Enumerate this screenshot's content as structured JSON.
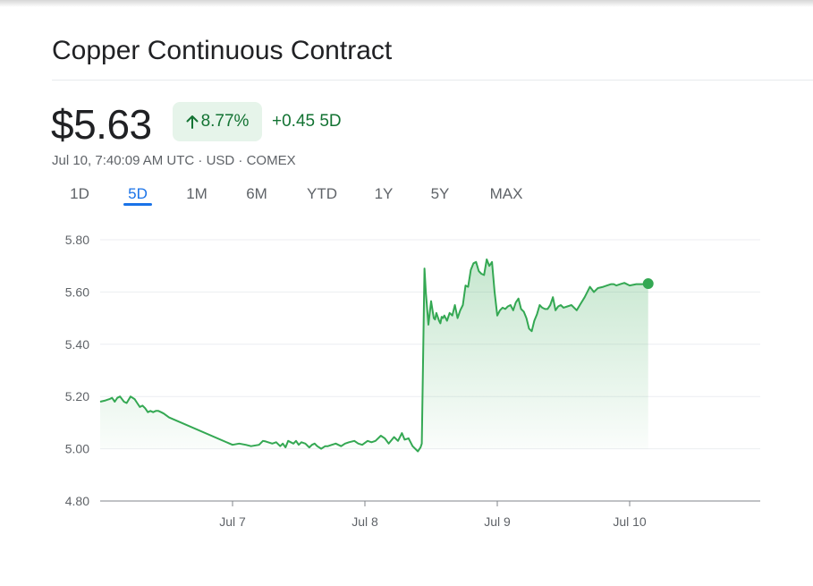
{
  "header": {
    "title": "Copper Continuous Contract",
    "price": "$5.63",
    "percent_change": "8.77%",
    "abs_change": "+0.45",
    "period": "5D",
    "meta": "Jul 10, 7:40:09 AM UTC · USD · COMEX"
  },
  "colors": {
    "up_green": "#137333",
    "line_green": "#34a853",
    "badge_bg": "#e6f4ea",
    "tab_active": "#1a73e8",
    "tab_inactive": "#5f6368"
  },
  "tabs": [
    {
      "label": "1D"
    },
    {
      "label": "5D",
      "active": true
    },
    {
      "label": "1M"
    },
    {
      "label": "6M"
    },
    {
      "label": "YTD"
    },
    {
      "label": "1Y"
    },
    {
      "label": "5Y"
    },
    {
      "label": "MAX"
    }
  ],
  "icons": {
    "change_icon": "arrow-up-icon"
  },
  "chart_data": {
    "type": "area",
    "title": "",
    "xlabel": "",
    "ylabel": "",
    "ylim": [
      4.8,
      5.8
    ],
    "yticks": [
      5.8,
      5.6,
      5.4,
      5.2,
      5.0,
      4.8
    ],
    "ytick_labels": [
      "5.80",
      "5.60",
      "5.40",
      "5.20",
      "5.00",
      "4.80"
    ],
    "xlim": [
      6.0,
      11.0
    ],
    "xticks": [
      7,
      8,
      9,
      10
    ],
    "xtick_labels": [
      "Jul 7",
      "Jul 8",
      "Jul 9",
      "Jul 10"
    ],
    "grid": true,
    "baseline": 5.0,
    "x": [
      6.0,
      6.04,
      6.07,
      6.09,
      6.11,
      6.13,
      6.15,
      6.18,
      6.2,
      6.23,
      6.26,
      6.28,
      6.3,
      6.32,
      6.34,
      6.36,
      6.38,
      6.4,
      6.42,
      6.44,
      6.46,
      6.48,
      6.52,
      7.0,
      7.05,
      7.1,
      7.14,
      7.2,
      7.23,
      7.25,
      7.3,
      7.33,
      7.36,
      7.38,
      7.4,
      7.42,
      7.44,
      7.46,
      7.48,
      7.5,
      7.52,
      7.55,
      7.58,
      7.6,
      7.62,
      7.64,
      7.67,
      7.7,
      7.72,
      7.75,
      7.78,
      7.82,
      7.85,
      7.88,
      7.92,
      7.95,
      7.98,
      8.02,
      8.05,
      8.08,
      8.12,
      8.15,
      8.18,
      8.22,
      8.25,
      8.28,
      8.3,
      8.33,
      8.36,
      8.38,
      8.4,
      8.42,
      8.43,
      8.45,
      8.46,
      8.48,
      8.5,
      8.52,
      8.53,
      8.54,
      8.56,
      8.57,
      8.58,
      8.59,
      8.6,
      8.62,
      8.64,
      8.66,
      8.68,
      8.7,
      8.72,
      8.74,
      8.76,
      8.78,
      8.8,
      8.82,
      8.84,
      8.86,
      8.88,
      8.9,
      8.92,
      8.94,
      8.96,
      8.98,
      9.0,
      9.02,
      9.04,
      9.06,
      9.08,
      9.1,
      9.12,
      9.14,
      9.16,
      9.18,
      9.2,
      9.22,
      9.24,
      9.26,
      9.28,
      9.3,
      9.32,
      9.34,
      9.36,
      9.38,
      9.4,
      9.42,
      9.44,
      9.46,
      9.48,
      9.5,
      9.53,
      9.56,
      9.6,
      9.63,
      9.66,
      9.7,
      9.73,
      9.76,
      9.8,
      9.83,
      9.86,
      9.88,
      9.9,
      9.93,
      9.96,
      10.0,
      10.05,
      10.1,
      10.14
    ],
    "y": [
      5.18,
      5.185,
      5.19,
      5.195,
      5.18,
      5.195,
      5.2,
      5.18,
      5.175,
      5.2,
      5.19,
      5.175,
      5.16,
      5.165,
      5.155,
      5.14,
      5.145,
      5.14,
      5.145,
      5.145,
      5.14,
      5.135,
      5.12,
      5.015,
      5.02,
      5.015,
      5.01,
      5.015,
      5.03,
      5.028,
      5.02,
      5.025,
      5.01,
      5.02,
      5.005,
      5.03,
      5.025,
      5.02,
      5.03,
      5.015,
      5.025,
      5.02,
      5.005,
      5.015,
      5.02,
      5.01,
      5.0,
      5.01,
      5.01,
      5.015,
      5.02,
      5.01,
      5.02,
      5.025,
      5.03,
      5.02,
      5.015,
      5.03,
      5.025,
      5.03,
      5.05,
      5.04,
      5.02,
      5.045,
      5.03,
      5.06,
      5.035,
      5.04,
      5.01,
      5.0,
      4.99,
      5.005,
      5.02,
      5.69,
      5.6,
      5.475,
      5.565,
      5.5,
      5.495,
      5.52,
      5.49,
      5.48,
      5.505,
      5.5,
      5.51,
      5.49,
      5.52,
      5.51,
      5.55,
      5.5,
      5.53,
      5.55,
      5.625,
      5.62,
      5.685,
      5.71,
      5.715,
      5.68,
      5.67,
      5.665,
      5.725,
      5.7,
      5.715,
      5.6,
      5.51,
      5.53,
      5.54,
      5.535,
      5.545,
      5.55,
      5.53,
      5.56,
      5.575,
      5.535,
      5.525,
      5.5,
      5.46,
      5.45,
      5.49,
      5.515,
      5.55,
      5.54,
      5.535,
      5.535,
      5.55,
      5.58,
      5.53,
      5.545,
      5.55,
      5.54,
      5.545,
      5.55,
      5.53,
      5.555,
      5.58,
      5.62,
      5.6,
      5.615,
      5.62,
      5.625,
      5.63,
      5.63,
      5.625,
      5.63,
      5.635,
      5.625,
      5.63,
      5.63,
      5.632
    ]
  }
}
